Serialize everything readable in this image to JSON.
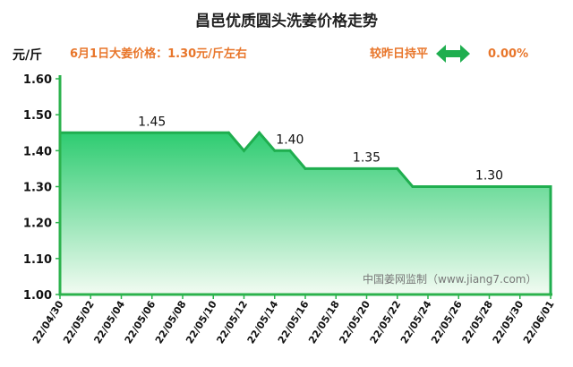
{
  "header": {
    "title": "昌邑优质圆头洗姜价格走势",
    "price_note": "6月1日大姜价格：1.30元/斤左右",
    "compare_label": "较昨日持平",
    "change_value": "0.00%",
    "unit": "元/斤",
    "accent_color": "#E8762B",
    "arrow_color": "#1FAE4F",
    "arrow_icon": "double-arrow-icon"
  },
  "watermark": "中国姜网监制（www.jiang7.com）",
  "chart_data": {
    "type": "area",
    "title": "昌邑优质圆头洗姜价格走势",
    "xlabel": "",
    "ylabel": "元/斤",
    "ylim": [
      1.0,
      1.6
    ],
    "yticks": [
      "1.00",
      "1.10",
      "1.20",
      "1.30",
      "1.40",
      "1.50",
      "1.60"
    ],
    "grid": false,
    "x": [
      "22/04/30",
      "22/05/11",
      "22/05/12",
      "22/05/13",
      "22/05/14",
      "22/05/15",
      "22/05/16",
      "22/05/22",
      "22/05/23",
      "22/06/01"
    ],
    "values": [
      1.45,
      1.45,
      1.4,
      1.45,
      1.4,
      1.4,
      1.35,
      1.35,
      1.3,
      1.3
    ],
    "xtick_labels": [
      "22/04/30",
      "22/05/02",
      "22/05/04",
      "22/05/06",
      "22/05/08",
      "22/05/10",
      "22/05/12",
      "22/05/14",
      "22/05/16",
      "22/05/18",
      "22/05/20",
      "22/05/22",
      "22/05/24",
      "22/05/26",
      "22/05/28",
      "22/05/30",
      "22/06/01"
    ],
    "annotations": [
      {
        "x": "22/05/06",
        "text": "1.45"
      },
      {
        "x": "22/05/15",
        "text": "1.40"
      },
      {
        "x": "22/05/20",
        "text": "1.35"
      },
      {
        "x": "22/05/28",
        "text": "1.30"
      }
    ],
    "colors": {
      "line": "#1FAE4F",
      "fill_top": "#2ECC71",
      "fill_bottom": "#F2FBF2",
      "axis": "#2BB24C"
    }
  }
}
